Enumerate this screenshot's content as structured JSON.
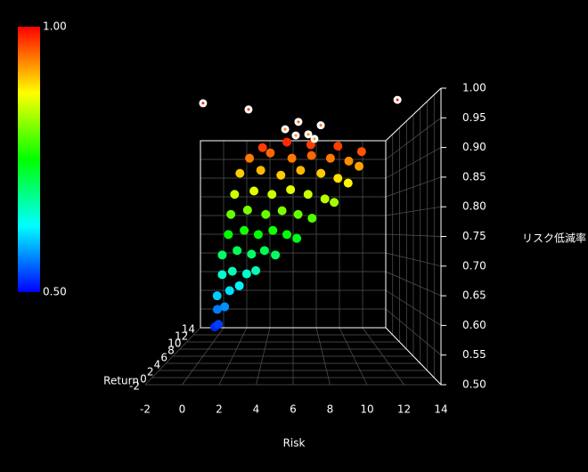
{
  "chart_data": {
    "type": "scatter3d",
    "xlabel": "Risk",
    "ylabel": "Return",
    "zlabel": "リスク低減率",
    "xlim": [
      -2,
      14
    ],
    "xticks": [
      -2,
      0,
      2,
      4,
      6,
      8,
      10,
      12,
      14
    ],
    "ylim": [
      -2,
      14
    ],
    "yticks": [
      -2,
      0,
      2,
      4,
      6,
      8,
      10,
      12,
      14
    ],
    "zlim": [
      0.5,
      1.0
    ],
    "zticks": [
      {
        "value": 0.5,
        "label": "0.50"
      },
      {
        "value": 0.55,
        "label": "0.55"
      },
      {
        "value": 0.6,
        "label": "0.60"
      },
      {
        "value": 0.65,
        "label": "0.65"
      },
      {
        "value": 0.7,
        "label": "0.70"
      },
      {
        "value": 0.75,
        "label": "0.75"
      },
      {
        "value": 0.8,
        "label": "0.80"
      },
      {
        "value": 0.85,
        "label": "0.85"
      },
      {
        "value": 0.9,
        "label": "0.90"
      },
      {
        "value": 0.95,
        "label": "0.95"
      },
      {
        "value": 1.0,
        "label": "1.00"
      }
    ],
    "clim": [
      0.5,
      1.0
    ],
    "cticks": [
      {
        "value": 0.5,
        "label": "0.50"
      },
      {
        "value": 1.0,
        "label": "1.00"
      }
    ],
    "colorscale": [
      "#0000ff",
      "#00ffff",
      "#00ff00",
      "#ffff00",
      "#ff0000"
    ],
    "grid": true,
    "points": {
      "x": [
        -0.3,
        0.1,
        -0.2,
        0.5,
        0.0,
        0.9,
        1.6,
        0.3,
        1.2,
        2.2,
        3.0,
        0.4,
        1.5,
        2.6,
        3.7,
        4.6,
        0.8,
        2.0,
        3.2,
        4.4,
        5.5,
        6.3,
        1.0,
        2.4,
        3.8,
        5.1,
        6.4,
        7.5,
        1.3,
        2.8,
        4.3,
        5.8,
        7.2,
        8.6,
        9.3,
        1.8,
        3.4,
        5.0,
        6.6,
        8.2,
        9.6,
        10.5,
        2.5,
        4.2,
        5.9,
        7.5,
        9.0,
        10.4,
        11.3,
        3.5,
        5.5,
        7.4,
        9.6,
        11.6
      ],
      "y": [
        12,
        11.5,
        12.5,
        12,
        11.5,
        12,
        12.5,
        12,
        11.5,
        12.5,
        12,
        11.5,
        12,
        12.5,
        12,
        11.5,
        12,
        12.5,
        12,
        11.5,
        12,
        12.5,
        12,
        11.5,
        12,
        12.5,
        12,
        11.5,
        12,
        12.5,
        12,
        11.5,
        12,
        12.5,
        12,
        11.5,
        12,
        12.5,
        12,
        11.5,
        12,
        12.5,
        12,
        11.5,
        12,
        12.5,
        12,
        11.5,
        12,
        12.5,
        12,
        11.5,
        12,
        12.5
      ],
      "z": [
        0.52,
        0.53,
        0.56,
        0.57,
        0.6,
        0.61,
        0.62,
        0.65,
        0.66,
        0.65,
        0.66,
        0.7,
        0.71,
        0.7,
        0.71,
        0.7,
        0.75,
        0.76,
        0.75,
        0.76,
        0.75,
        0.74,
        0.8,
        0.81,
        0.8,
        0.81,
        0.8,
        0.79,
        0.85,
        0.86,
        0.85,
        0.86,
        0.85,
        0.84,
        0.83,
        0.9,
        0.91,
        0.9,
        0.91,
        0.9,
        0.89,
        0.88,
        0.94,
        0.95,
        0.94,
        0.95,
        0.94,
        0.93,
        0.92,
        0.97,
        0.98,
        0.97,
        0.97,
        0.96
      ]
    },
    "highlights": {
      "color": "#ffffff",
      "x": [
        0.89,
        3.47,
        5.55,
        6.3,
        6.15,
        6.86,
        7.57,
        7.21,
        11.92
      ],
      "y": [
        0,
        0,
        0,
        0,
        0,
        0,
        0,
        0,
        0
      ],
      "z": [
        0.985,
        0.974,
        0.939,
        0.952,
        0.928,
        0.93,
        0.946,
        0.922,
        0.991
      ]
    }
  }
}
